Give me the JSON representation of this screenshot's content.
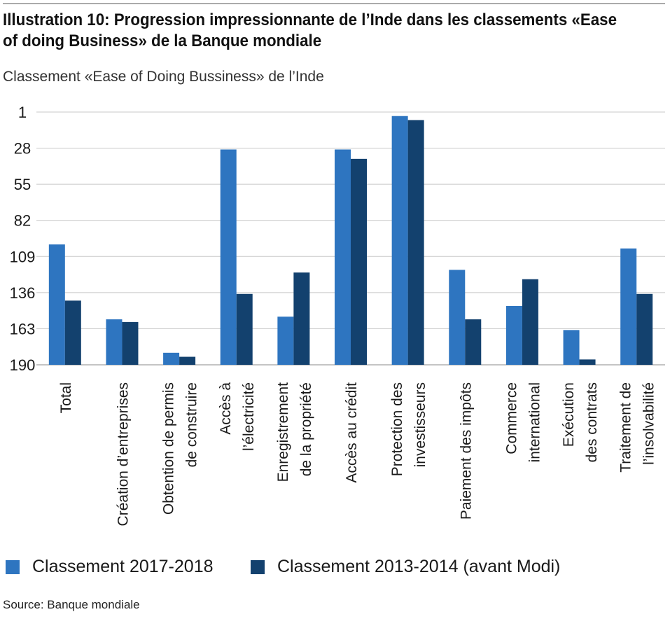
{
  "title": "Illustration 10: Progression impressionnante de l’Inde dans les classements «Ease of doing Business» de la Banque mondiale",
  "subtitle": "Classement «Ease of Doing Bussiness» de l’Inde",
  "source": "Source: Banque mondiale",
  "colors": {
    "series1": "#2e75c0",
    "series2": "#13416e",
    "grid": "#c8c8c8"
  },
  "chart_data": {
    "type": "bar",
    "categories": [
      [
        "Total"
      ],
      [
        "Création d’entreprises"
      ],
      [
        "Obtention de permis",
        "de construire"
      ],
      [
        "Accès à",
        "l’électricité"
      ],
      [
        "Enregistrement",
        "de la propriété"
      ],
      [
        "Accès au crédit"
      ],
      [
        "Protection des",
        "investisseurs"
      ],
      [
        "Paiement des impôts"
      ],
      [
        "Commerce",
        "international"
      ],
      [
        "Exécution",
        "des contrats"
      ],
      [
        "Traitement de",
        "l’insolvabilité"
      ]
    ],
    "y_ticks": [
      "1",
      "28",
      "55",
      "82",
      "109",
      "136",
      "163",
      "190"
    ],
    "ylim": [
      1,
      190
    ],
    "y_inverted": true,
    "grid": true,
    "legend_position": "bottom",
    "series": [
      {
        "name": "Classement 2017-2018",
        "values": [
          100,
          156,
          181,
          29,
          154,
          29,
          4,
          119,
          146,
          164,
          103
        ]
      },
      {
        "name": "Classement 2013-2014 (avant Modi)",
        "values": [
          142,
          158,
          184,
          137,
          121,
          36,
          7,
          156,
          126,
          186,
          137
        ]
      }
    ]
  }
}
